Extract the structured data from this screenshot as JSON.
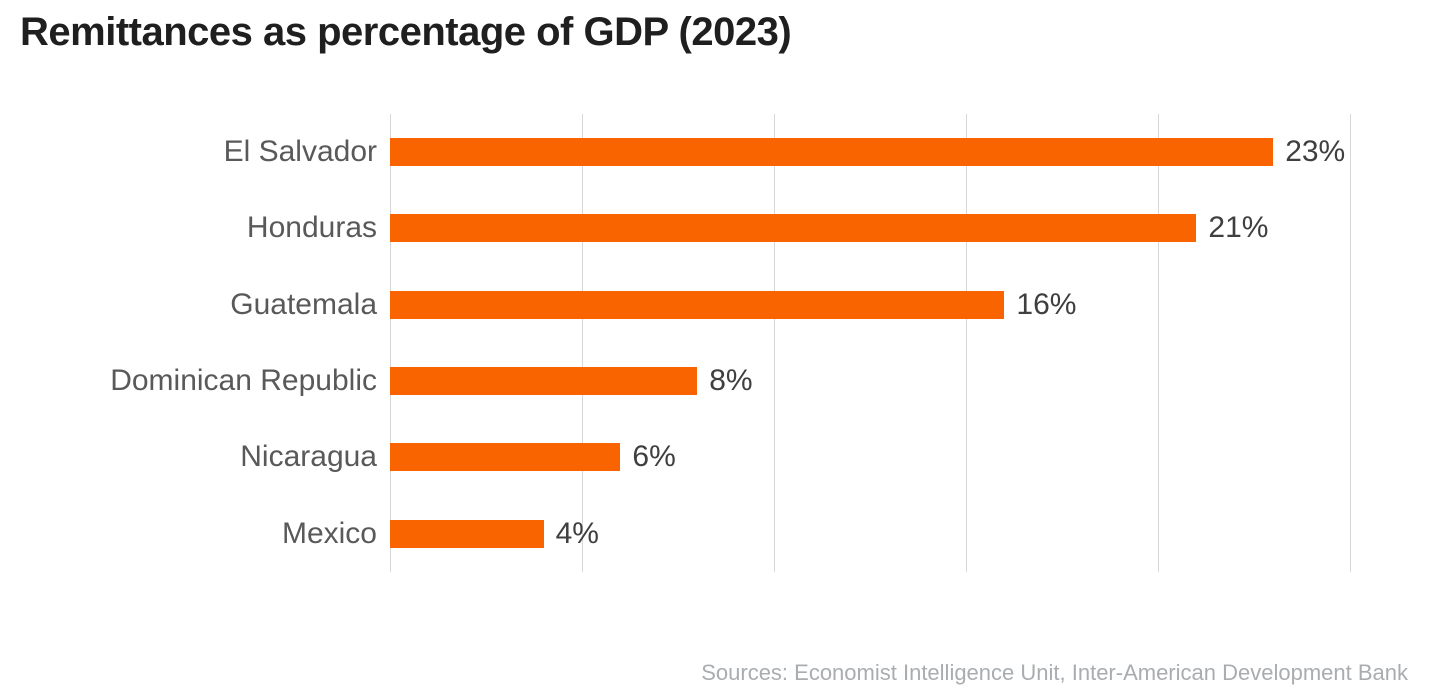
{
  "page": {
    "title": "Remittances as percentage of GDP (2023)",
    "source": "Sources: Economist Intelligence Unit, Inter-American Development Bank"
  },
  "chart_data": {
    "type": "bar",
    "orientation": "horizontal",
    "title": "Remittances as percentage of GDP (2023)",
    "categories": [
      "El Salvador",
      "Honduras",
      "Guatemala",
      "Dominican Republic",
      "Nicaragua",
      "Mexico"
    ],
    "values": [
      23,
      21,
      16,
      8,
      6,
      4
    ],
    "value_labels": [
      "23%",
      "21%",
      "16%",
      "8%",
      "6%",
      "4%"
    ],
    "xlabel": "",
    "ylabel": "",
    "xlim": [
      0,
      25
    ],
    "gridline_step": 5,
    "grid": true,
    "legend": false,
    "tick_labels_visible": false,
    "bar_color": "#FA6400",
    "gridline_color": "#D6D6D6",
    "category_label_color": "#595959",
    "value_label_color": "#3F3F3F",
    "title_color": "#1F1F1F",
    "source_color": "#A9ADB0",
    "source": "Sources: Economist Intelligence Unit, Inter-American Development Bank"
  }
}
